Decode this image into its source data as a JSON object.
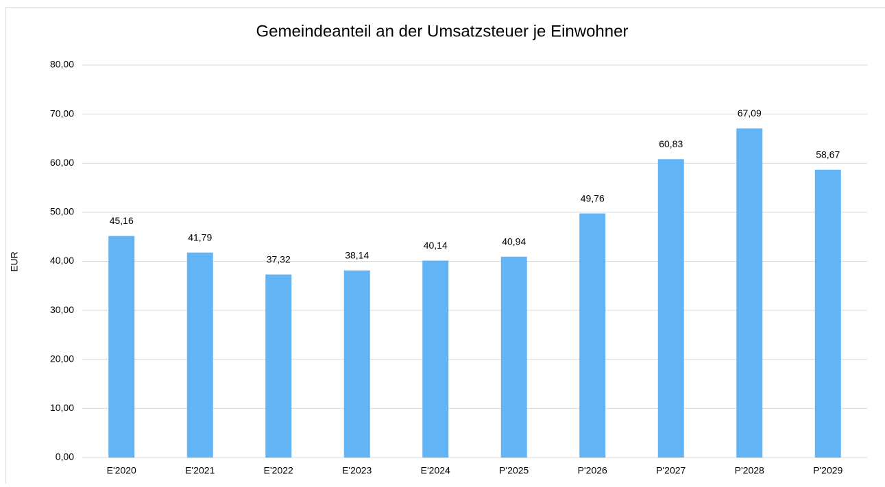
{
  "chart_data": {
    "type": "bar",
    "title": "Gemeindeanteil an der Umsatzsteuer je Einwohner",
    "y_label": "EUR",
    "categories": [
      "E'2020",
      "E'2021",
      "E'2022",
      "E'2023",
      "E'2024",
      "P'2025",
      "P'2026",
      "P'2027",
      "P'2028",
      "P'2029"
    ],
    "values": [
      45.16,
      41.79,
      37.32,
      38.14,
      40.14,
      40.94,
      49.76,
      60.83,
      67.09,
      58.67
    ],
    "value_labels": [
      "45,16",
      "41,79",
      "37,32",
      "38,14",
      "40,14",
      "40,94",
      "49,76",
      "60,83",
      "67,09",
      "58,67"
    ],
    "color": "#63b4f5",
    "ylim": [
      0,
      80
    ],
    "yticks": [
      {
        "value": 0,
        "label": "0,00"
      },
      {
        "value": 10,
        "label": "10,00"
      },
      {
        "value": 20,
        "label": "20,00"
      },
      {
        "value": 30,
        "label": "30,00"
      },
      {
        "value": 40,
        "label": "40,00"
      },
      {
        "value": 50,
        "label": "50,00"
      },
      {
        "value": 60,
        "label": "60,00"
      },
      {
        "value": 70,
        "label": "70,00"
      },
      {
        "value": 80,
        "label": "80,00"
      }
    ],
    "grid": true
  }
}
